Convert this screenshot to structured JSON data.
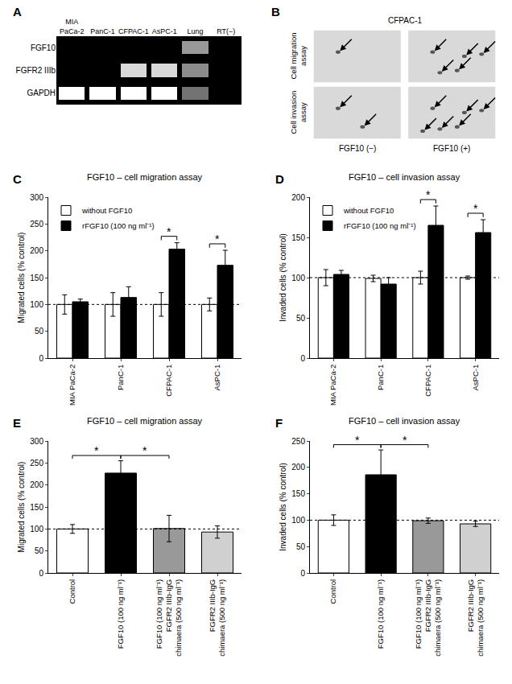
{
  "chart_data": [
    {
      "panel": "A",
      "type": "heatmap",
      "categories": [
        "MIA PaCa-2",
        "PanC-1",
        "CFPAC-1",
        "AsPC-1",
        "Lung",
        "RT(−)"
      ],
      "rows": [
        "FGF10",
        "FGFR2 IIIb",
        "GAPDH"
      ],
      "cells": [
        [
          0,
          0,
          0,
          0,
          0.6,
          0
        ],
        [
          0,
          0,
          0.85,
          0.85,
          0.55,
          0
        ],
        [
          1,
          1,
          1,
          1,
          0.45,
          0
        ]
      ],
      "zlim": [
        0,
        1
      ],
      "color": "#ffffff"
    },
    {
      "panel": "B",
      "type": "image",
      "title": "CFPAC-1",
      "rows": [
        "Cell migration assay",
        "Cell invasion assay"
      ],
      "columns": [
        "FGF10 (−)",
        "FGF10 (+)"
      ],
      "arrows": [
        [
          1,
          5
        ],
        [
          2,
          6
        ]
      ],
      "tick_labels": false
    },
    {
      "panel": "C",
      "type": "bar",
      "title": "FGF10 – cell migration assay",
      "y_label": "Migrated cells (% control)",
      "categories": [
        "MIA PaCa-2",
        "PanC-1",
        "CFPAC-1",
        "AsPC-1"
      ],
      "series": [
        {
          "name": "without FGF10",
          "color": "#ffffff",
          "values": [
            100,
            100,
            100,
            100
          ],
          "errors": [
            18,
            22,
            22,
            12
          ]
        },
        {
          "name": "rFGF10 (100 ng ml⁻¹)",
          "color": "#000000",
          "values": [
            105,
            113,
            203,
            173
          ],
          "errors": [
            5,
            20,
            12,
            28
          ]
        }
      ],
      "ylim": [
        0,
        300
      ],
      "yticks": [
        0,
        50,
        100,
        150,
        200,
        250,
        300
      ],
      "reference_line": 100,
      "legend": "top left",
      "significance": [
        {
          "category": "CFPAC-1",
          "label": "*"
        },
        {
          "category": "AsPC-1",
          "label": "*"
        }
      ]
    },
    {
      "panel": "D",
      "type": "bar",
      "title": "FGF10 – cell invasion assay",
      "y_label": "Invaded cells (% control)",
      "categories": [
        "MIA PaCa-2",
        "PanC-1",
        "CFPAC-1",
        "AsPC-1"
      ],
      "series": [
        {
          "name": "without FGF10",
          "color": "#ffffff",
          "values": [
            100,
            99,
            100,
            100
          ],
          "errors": [
            10,
            4,
            8,
            2
          ]
        },
        {
          "name": "rFGF10 (100 ng ml⁻¹)",
          "color": "#000000",
          "values": [
            104,
            92,
            165,
            156
          ],
          "errors": [
            5,
            8,
            24,
            16
          ]
        }
      ],
      "ylim": [
        0,
        200
      ],
      "yticks": [
        0,
        50,
        100,
        150,
        200
      ],
      "reference_line": 100,
      "legend": "top left",
      "significance": [
        {
          "category": "CFPAC-1",
          "label": "*"
        },
        {
          "category": "AsPC-1",
          "label": "*"
        }
      ]
    },
    {
      "panel": "E",
      "type": "bar",
      "title": "FGF10 – cell migration assay",
      "y_label": "Migrated cells (% control)",
      "categories": [
        "Control",
        "FGF10 (100 ng ml⁻¹)",
        "FGF10 (100 ng ml⁻¹) FGFR2 IIIb-IgG chimaera (500 ng ml⁻¹)",
        "FGFR2 IIIb-IgG chimaera (500 ng ml⁻¹)"
      ],
      "values": [
        100,
        227,
        101,
        93
      ],
      "errors": [
        10,
        28,
        30,
        14
      ],
      "colors": [
        "#ffffff",
        "#000000",
        "#999999",
        "#d0d0d0"
      ],
      "ylim": [
        0,
        300
      ],
      "yticks": [
        0,
        50,
        100,
        150,
        200,
        250,
        300
      ],
      "reference_line": 100,
      "significance": [
        {
          "from": "Control",
          "to": "FGF10 (100 ng ml⁻¹)",
          "label": "*"
        },
        {
          "from": "FGF10 (100 ng ml⁻¹)",
          "to": "FGF10 (100 ng ml⁻¹) FGFR2 IIIb-IgG chimaera (500 ng ml⁻¹)",
          "label": "*"
        }
      ]
    },
    {
      "panel": "F",
      "type": "bar",
      "title": "FGF10 – cell invasion assay",
      "y_label": "Invaded cells (% control)",
      "categories": [
        "Control",
        "FGF10 (100 ng ml⁻¹)",
        "FGF10 (100 ng ml⁻¹) FGFR2 IIIb-IgG chimaera (500 ng ml⁻¹)",
        "FGFR2 IIIb-IgG chimaera (500 ng ml⁻¹)"
      ],
      "values": [
        100,
        186,
        99,
        93
      ],
      "errors": [
        10,
        47,
        5,
        5
      ],
      "colors": [
        "#ffffff",
        "#000000",
        "#999999",
        "#d0d0d0"
      ],
      "ylim": [
        0,
        250
      ],
      "yticks": [
        0,
        50,
        100,
        150,
        200,
        250
      ],
      "reference_line": 100,
      "significance": [
        {
          "from": "Control",
          "to": "FGF10 (100 ng ml⁻¹)",
          "label": "*"
        },
        {
          "from": "FGF10 (100 ng ml⁻¹)",
          "to": "FGF10 (100 ng ml⁻¹) FGFR2 IIIb-IgG chimaera (500 ng ml⁻¹)",
          "label": "*"
        }
      ]
    }
  ]
}
